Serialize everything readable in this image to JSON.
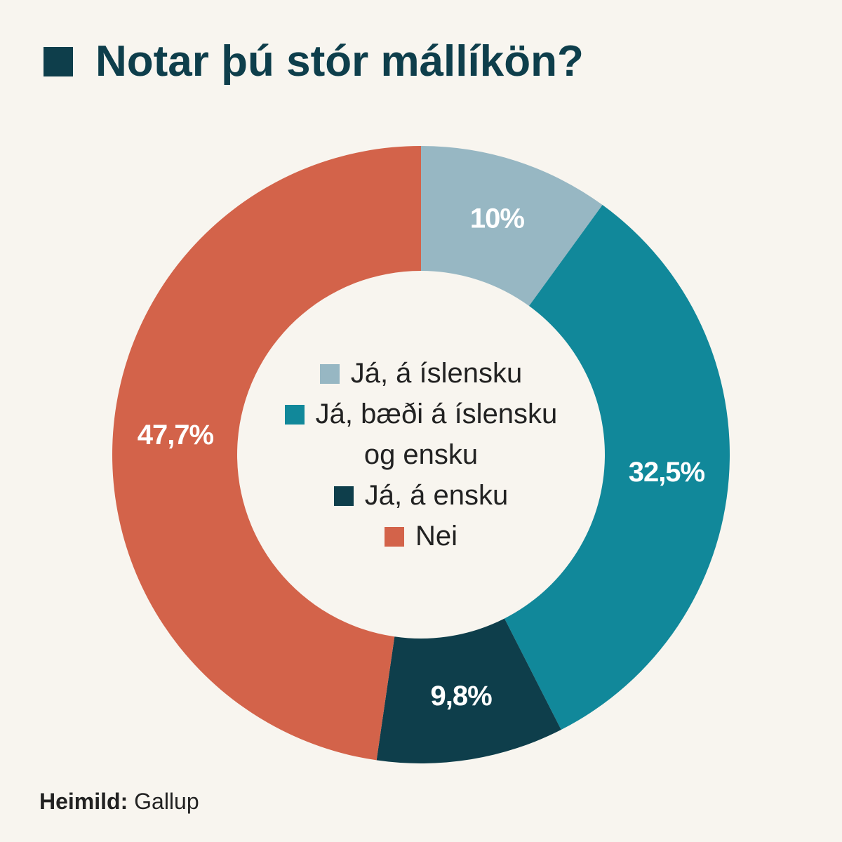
{
  "chart_data": {
    "type": "pie",
    "title": "Notar þú stór mállíkön?",
    "categories": [
      "Já, á íslensku",
      "Já, bæði á íslensku og ensku",
      "Já, á ensku",
      "Nei"
    ],
    "values": [
      10,
      32.5,
      9.8,
      47.7
    ],
    "value_labels": [
      "10%",
      "32,5%",
      "9,8%",
      "47,7%"
    ],
    "colors": [
      "#97b7c3",
      "#11889a",
      "#0e3e4b",
      "#d3634a"
    ],
    "source_label": "Heimild:",
    "source": "Gallup"
  }
}
